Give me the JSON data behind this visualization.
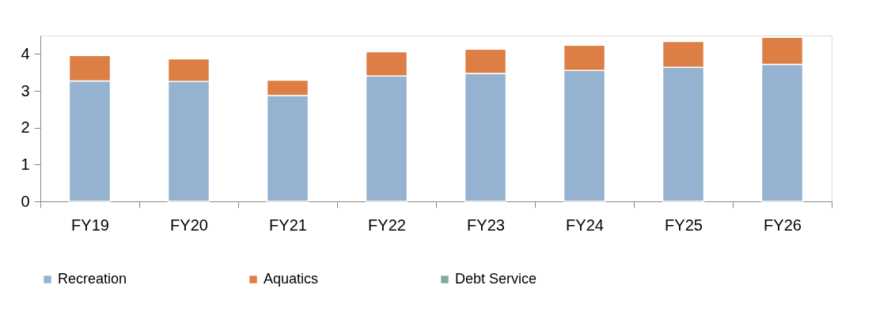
{
  "chart_data": {
    "type": "bar",
    "stacked": true,
    "categories": [
      "FY19",
      "FY20",
      "FY21",
      "FY22",
      "FY23",
      "FY24",
      "FY25",
      "FY26"
    ],
    "series": [
      {
        "name": "Recreation",
        "color": "#95b3d1",
        "values": [
          3.27,
          3.25,
          2.87,
          3.4,
          3.47,
          3.55,
          3.64,
          3.72
        ]
      },
      {
        "name": "Aquatics",
        "color": "#dd7f45",
        "values": [
          0.69,
          0.62,
          0.42,
          0.66,
          0.66,
          0.69,
          0.7,
          0.73
        ]
      },
      {
        "name": "Debt Service",
        "color": "#7fab9f",
        "values": [
          null,
          null,
          null,
          null,
          null,
          null,
          null,
          null
        ]
      }
    ],
    "ylim": [
      0,
      4.5
    ],
    "yticks": [
      0,
      1,
      2,
      3,
      4
    ],
    "grid": false,
    "legend": "bottom"
  }
}
